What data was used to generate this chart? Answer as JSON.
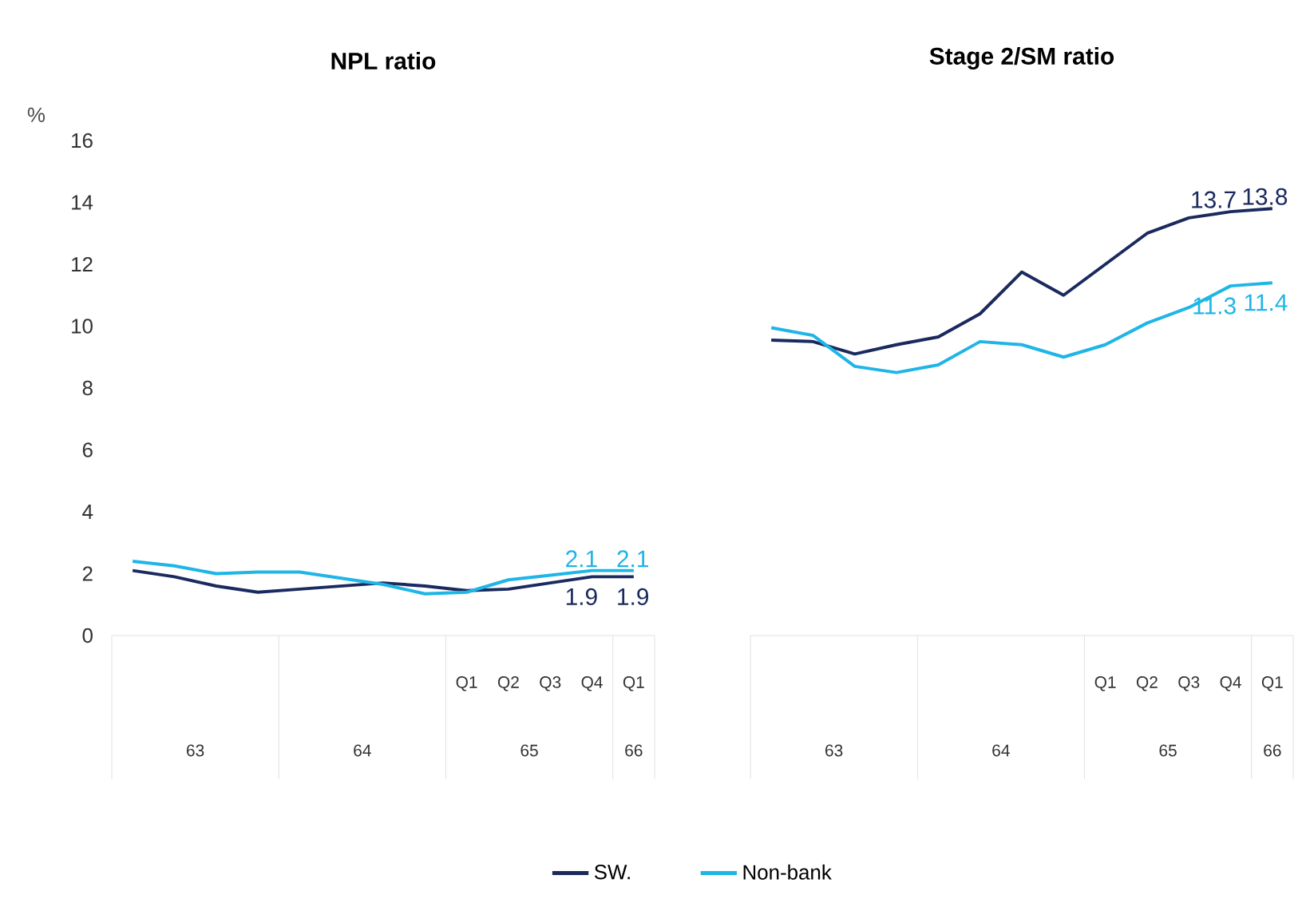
{
  "chart_data": [
    {
      "type": "line",
      "title": "NPL ratio",
      "ylabel": "%",
      "categories": [
        null,
        null,
        null,
        null,
        null,
        null,
        null,
        null,
        "Q1",
        "Q2",
        "Q3",
        "Q4",
        "Q1"
      ],
      "annotations": [
        "63",
        "64",
        "65",
        "66"
      ],
      "ylim": [
        0,
        16
      ],
      "yticks": [
        0,
        2,
        4,
        6,
        8,
        10,
        12,
        14,
        16
      ],
      "legend": "bottom",
      "series": [
        {
          "name": "SW.",
          "color": "#1b2a5e",
          "values": [
            2.1,
            1.9,
            1.6,
            1.4,
            1.5,
            1.6,
            1.7,
            1.6,
            1.45,
            1.5,
            1.7,
            1.9,
            1.9
          ],
          "value_labels": [
            null,
            null,
            null,
            null,
            null,
            null,
            null,
            null,
            null,
            null,
            null,
            "1.9",
            "1.9"
          ]
        },
        {
          "name": "Non-bank",
          "color": "#1fb5e6",
          "values": [
            2.4,
            2.25,
            2.0,
            2.05,
            2.05,
            1.85,
            1.65,
            1.35,
            1.4,
            1.8,
            1.95,
            2.1,
            2.1
          ],
          "value_labels": [
            null,
            null,
            null,
            null,
            null,
            null,
            null,
            null,
            null,
            null,
            null,
            "2.1",
            "2.1"
          ]
        }
      ]
    },
    {
      "type": "line",
      "title": "Stage 2/SM ratio",
      "categories": [
        null,
        null,
        null,
        null,
        null,
        null,
        null,
        null,
        "Q1",
        "Q2",
        "Q3",
        "Q4",
        "Q1"
      ],
      "annotations": [
        "63",
        "64",
        "65",
        "66"
      ],
      "ylim": [
        0,
        16
      ],
      "yticks": [
        0,
        2,
        4,
        6,
        8,
        10,
        12,
        14,
        16
      ],
      "tick_labels": "x",
      "series": [
        {
          "color": "#1b2a5e",
          "values": [
            9.55,
            9.5,
            9.1,
            9.4,
            9.65,
            10.4,
            11.75,
            11.0,
            12.0,
            13.0,
            13.5,
            13.7,
            13.8
          ],
          "value_labels": [
            null,
            null,
            null,
            null,
            null,
            null,
            null,
            null,
            null,
            null,
            null,
            "13.7",
            "13.8"
          ]
        },
        {
          "color": "#1fb5e6",
          "values": [
            9.95,
            9.7,
            8.7,
            8.5,
            8.75,
            9.5,
            9.4,
            9.0,
            9.4,
            10.1,
            10.6,
            11.3,
            11.4
          ],
          "value_labels": [
            null,
            null,
            null,
            null,
            null,
            null,
            null,
            null,
            null,
            null,
            null,
            "11.3",
            "11.4"
          ]
        }
      ]
    }
  ]
}
